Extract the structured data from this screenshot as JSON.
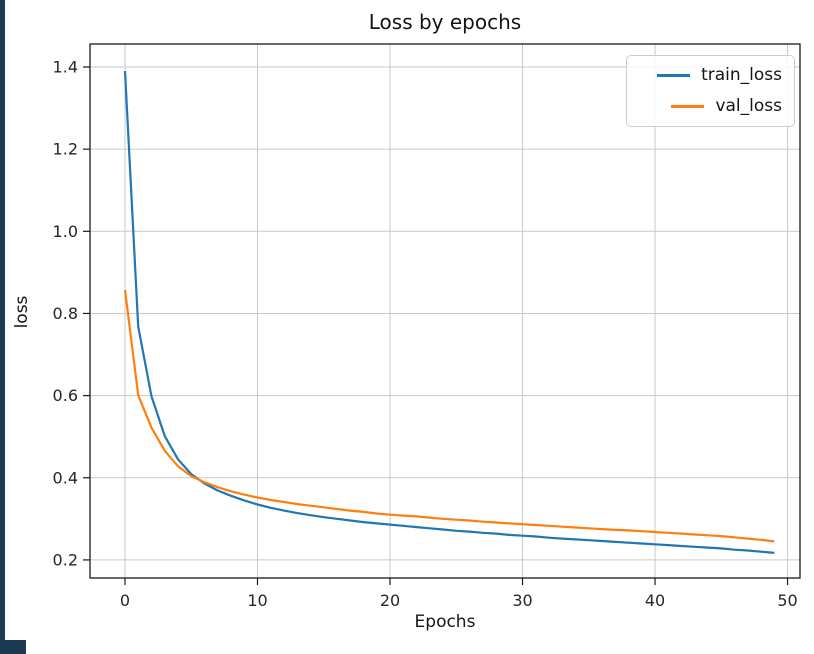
{
  "window": {
    "edge_color": "#1d3a53"
  },
  "chart_data": {
    "type": "line",
    "title": "Loss by epochs",
    "xlabel": "Epochs",
    "ylabel": "loss",
    "grid": true,
    "legend_position": "upper right",
    "xlim": [
      -2.64,
      50.94
    ],
    "ylim": [
      0.156,
      1.456
    ],
    "x_ticks": [
      0,
      10,
      20,
      30,
      40,
      50
    ],
    "x_tick_labels": [
      "0",
      "10",
      "20",
      "30",
      "40",
      "50"
    ],
    "y_ticks": [
      0.2,
      0.4,
      0.6,
      0.8,
      1.0,
      1.2,
      1.4
    ],
    "y_tick_labels": [
      "0.2",
      "0.4",
      "0.6",
      "0.8",
      "1.0",
      "1.2",
      "1.4"
    ],
    "x": [
      0,
      1,
      2,
      3,
      4,
      5,
      6,
      7,
      8,
      9,
      10,
      11,
      12,
      13,
      14,
      15,
      16,
      17,
      18,
      19,
      20,
      21,
      22,
      23,
      24,
      25,
      26,
      27,
      28,
      29,
      30,
      31,
      32,
      33,
      34,
      35,
      36,
      37,
      38,
      39,
      40,
      41,
      42,
      43,
      44,
      45,
      46,
      47,
      48,
      49
    ],
    "series": [
      {
        "name": "train_loss",
        "color": "#1f77b4",
        "values": [
          1.39,
          0.768,
          0.598,
          0.502,
          0.445,
          0.409,
          0.386,
          0.369,
          0.356,
          0.345,
          0.335,
          0.327,
          0.32,
          0.314,
          0.309,
          0.304,
          0.3,
          0.296,
          0.292,
          0.289,
          0.286,
          0.283,
          0.28,
          0.277,
          0.274,
          0.271,
          0.269,
          0.266,
          0.264,
          0.261,
          0.259,
          0.257,
          0.254,
          0.252,
          0.25,
          0.248,
          0.246,
          0.244,
          0.242,
          0.24,
          0.238,
          0.236,
          0.234,
          0.232,
          0.23,
          0.228,
          0.225,
          0.223,
          0.22,
          0.217
        ]
      },
      {
        "name": "val_loss",
        "color": "#ff7f0e",
        "values": [
          0.857,
          0.601,
          0.522,
          0.466,
          0.428,
          0.404,
          0.389,
          0.377,
          0.367,
          0.359,
          0.352,
          0.346,
          0.341,
          0.336,
          0.332,
          0.328,
          0.324,
          0.32,
          0.317,
          0.313,
          0.31,
          0.308,
          0.306,
          0.303,
          0.3,
          0.298,
          0.296,
          0.293,
          0.291,
          0.289,
          0.287,
          0.285,
          0.283,
          0.281,
          0.279,
          0.277,
          0.275,
          0.273,
          0.272,
          0.27,
          0.268,
          0.266,
          0.264,
          0.262,
          0.26,
          0.258,
          0.255,
          0.252,
          0.249,
          0.245
        ]
      }
    ],
    "style": {
      "grid_color": "#c9c9c9",
      "spine_color": "#1a1a1a",
      "tick_label_color": "#262626",
      "line_width": 2.2
    }
  }
}
